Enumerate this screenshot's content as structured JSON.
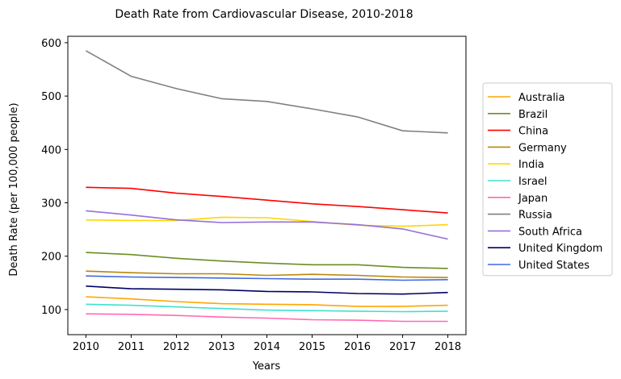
{
  "chart_data": {
    "type": "line",
    "title": "Death Rate from Cardiovascular Disease, 2010-2018",
    "xlabel": "Years",
    "ylabel": "Death Rate (per 100,000 people)",
    "x": [
      2010,
      2011,
      2012,
      2013,
      2014,
      2015,
      2016,
      2017,
      2018
    ],
    "xlim": [
      2009.6,
      2018.4
    ],
    "ylim": [
      53,
      612
    ],
    "yticks": [
      100,
      200,
      300,
      400,
      500,
      600
    ],
    "grid": false,
    "legend_position": "right",
    "series": [
      {
        "name": "Australia",
        "color": "#ffa500",
        "values": [
          124,
          120,
          115,
          111,
          110,
          109,
          106,
          106,
          108
        ]
      },
      {
        "name": "Brazil",
        "color": "#6b8e23",
        "values": [
          207,
          203,
          196,
          191,
          187,
          184,
          184,
          179,
          177
        ]
      },
      {
        "name": "China",
        "color": "#ff0000",
        "values": [
          329,
          327,
          318,
          312,
          305,
          298,
          293,
          287,
          281
        ]
      },
      {
        "name": "Germany",
        "color": "#b8860b",
        "values": [
          172,
          169,
          167,
          167,
          164,
          166,
          164,
          161,
          160
        ]
      },
      {
        "name": "India",
        "color": "#ffd700",
        "values": [
          268,
          267,
          267,
          273,
          272,
          265,
          258,
          256,
          259
        ]
      },
      {
        "name": "Israel",
        "color": "#40e0d0",
        "values": [
          110,
          108,
          105,
          102,
          99,
          98,
          97,
          96,
          97
        ]
      },
      {
        "name": "Japan",
        "color": "#ff69b4",
        "values": [
          92,
          91,
          89,
          86,
          84,
          81,
          80,
          78,
          78
        ]
      },
      {
        "name": "Russia",
        "color": "#808080",
        "values": [
          585,
          537,
          514,
          495,
          490,
          476,
          461,
          435,
          431
        ]
      },
      {
        "name": "South Africa",
        "color": "#9370db",
        "values": [
          285,
          277,
          268,
          263,
          264,
          264,
          259,
          251,
          232
        ]
      },
      {
        "name": "United Kingdom",
        "color": "#000066",
        "values": [
          144,
          139,
          138,
          137,
          134,
          133,
          130,
          129,
          132
        ]
      },
      {
        "name": "United States",
        "color": "#4169e1",
        "values": [
          163,
          161,
          160,
          159,
          158,
          157,
          157,
          155,
          156
        ]
      }
    ]
  }
}
